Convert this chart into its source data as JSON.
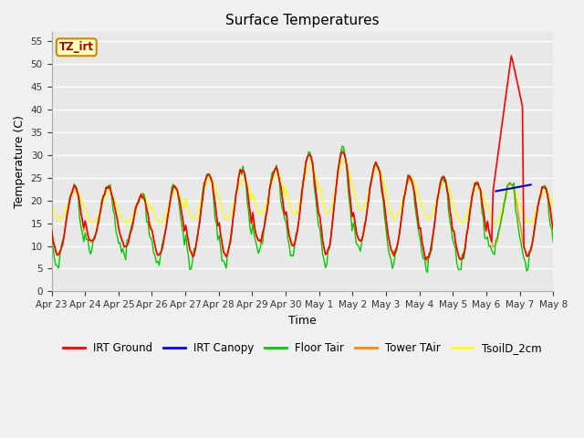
{
  "title": "Surface Temperatures",
  "xlabel": "Time",
  "ylabel": "Temperature (C)",
  "ylim": [
    0,
    57
  ],
  "yticks": [
    0,
    5,
    10,
    15,
    20,
    25,
    30,
    35,
    40,
    45,
    50,
    55
  ],
  "annotation_text": "TZ_irt",
  "fig_bg_color": "#f0f0f0",
  "plot_bg_color": "#e8e8e8",
  "legend_entries": [
    "IRT Ground",
    "IRT Canopy",
    "Floor Tair",
    "Tower TAir",
    "TsoilD_2cm"
  ],
  "legend_colors": [
    "#ff0000",
    "#0000ff",
    "#00cc00",
    "#ff8800",
    "#ffff00"
  ],
  "series_colors": {
    "irt_ground": "#ff0000",
    "irt_canopy": "#0000cc",
    "floor_tair": "#00cc00",
    "tower_tair": "#ff8800",
    "tsoil": "#ffff00"
  },
  "tick_labels": [
    "Apr 23",
    "Apr 24",
    "Apr 25",
    "Apr 26",
    "Apr 27",
    "Apr 28",
    "Apr 29",
    "Apr 30",
    "May 1",
    "May 2",
    "May 3",
    "May 4",
    "May 5",
    "May 6",
    "May 7",
    "May 8"
  ]
}
